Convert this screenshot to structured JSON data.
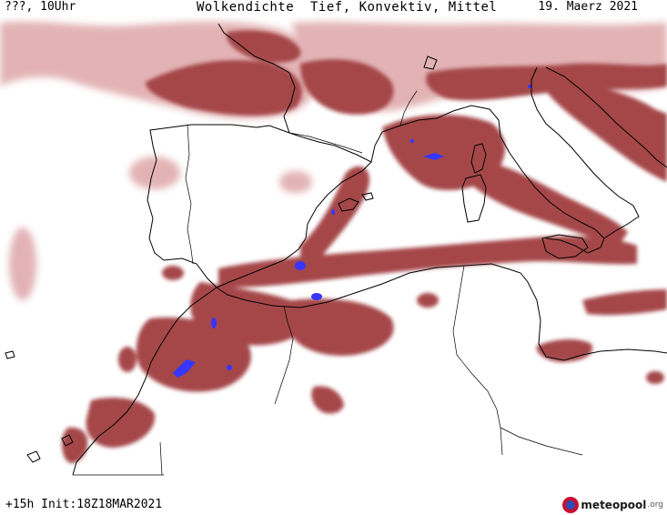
{
  "header": {
    "left": "???, 10Uhr",
    "title": "Wolkendichte  Tief, Konvektiv, Mittel",
    "date": "19. Maerz 2021"
  },
  "footer": {
    "run": "+15h Init:18Z18MAR2021"
  },
  "logo": {
    "name": "meteopool",
    "suffix": ".org"
  },
  "colors": {
    "cloud": "#a5474a",
    "cloud_light": "#d69294",
    "convective": "#3636ff",
    "coast": "#000000"
  }
}
